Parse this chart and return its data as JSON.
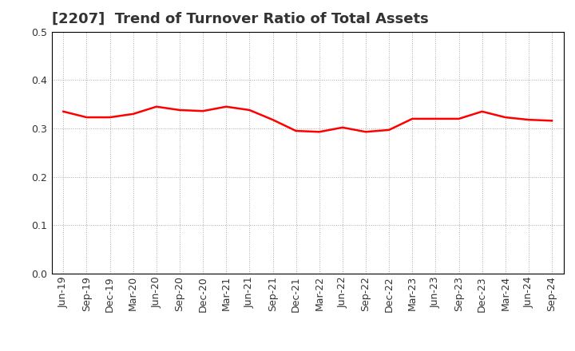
{
  "title": "[2207]  Trend of Turnover Ratio of Total Assets",
  "labels": [
    "Jun-19",
    "Sep-19",
    "Dec-19",
    "Mar-20",
    "Jun-20",
    "Sep-20",
    "Dec-20",
    "Mar-21",
    "Jun-21",
    "Sep-21",
    "Dec-21",
    "Mar-22",
    "Jun-22",
    "Sep-22",
    "Dec-22",
    "Mar-23",
    "Jun-23",
    "Sep-23",
    "Dec-23",
    "Mar-24",
    "Jun-24",
    "Sep-24"
  ],
  "values": [
    0.335,
    0.323,
    0.323,
    0.33,
    0.345,
    0.338,
    0.336,
    0.345,
    0.338,
    0.318,
    0.295,
    0.293,
    0.302,
    0.293,
    0.297,
    0.32,
    0.32,
    0.32,
    0.335,
    0.323,
    0.318,
    0.316
  ],
  "ylim": [
    0.0,
    0.5
  ],
  "yticks": [
    0.0,
    0.1,
    0.2,
    0.3,
    0.4,
    0.5
  ],
  "line_color": "#ff0000",
  "line_width": 1.8,
  "background_color": "#ffffff",
  "grid_color": "#aaaaaa",
  "title_fontsize": 13,
  "title_color": "#333333",
  "tick_fontsize": 9,
  "tick_color": "#333333"
}
